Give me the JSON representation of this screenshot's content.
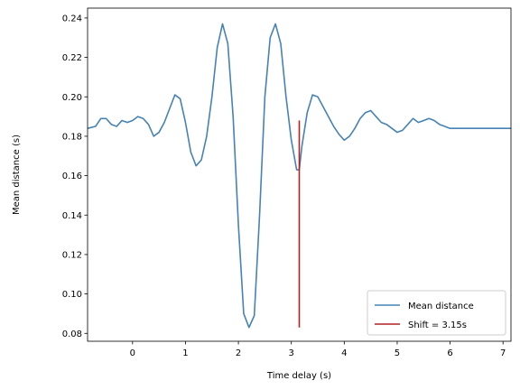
{
  "chart_data": {
    "type": "line",
    "title": "",
    "xlabel": "Time delay (s)",
    "ylabel": "Mean distance (s)",
    "xlim": [
      -0.85,
      7.15
    ],
    "ylim": [
      0.076,
      0.245
    ],
    "xticks": [
      0,
      1,
      2,
      3,
      4,
      5,
      6,
      7
    ],
    "xtick_labels": [
      "0",
      "1",
      "2",
      "3",
      "4",
      "5",
      "6",
      "7"
    ],
    "yticks": [
      0.08,
      0.1,
      0.12,
      0.14,
      0.16,
      0.18,
      0.2,
      0.22,
      0.24
    ],
    "ytick_labels": [
      "0.08",
      "0.10",
      "0.12",
      "0.14",
      "0.16",
      "0.18",
      "0.20",
      "0.22",
      "0.24"
    ],
    "grid": false,
    "legend_position": "lower-right",
    "series": [
      {
        "name": "Mean distance",
        "color": "#4682b4",
        "x": [
          -0.85,
          -0.7,
          -0.6,
          -0.5,
          -0.4,
          -0.3,
          -0.2,
          -0.1,
          0.0,
          0.1,
          0.2,
          0.3,
          0.4,
          0.5,
          0.6,
          0.7,
          0.8,
          0.9,
          1.0,
          1.1,
          1.2,
          1.3,
          1.4,
          1.5,
          1.6,
          1.7,
          1.8,
          1.9,
          2.0,
          2.1,
          2.2,
          2.3,
          2.4,
          2.5,
          2.6,
          2.7,
          2.8,
          2.9,
          3.0,
          3.1,
          3.15,
          3.2,
          3.3,
          3.4,
          3.5,
          3.6,
          3.7,
          3.8,
          3.9,
          4.0,
          4.1,
          4.2,
          4.3,
          4.4,
          4.5,
          4.6,
          4.7,
          4.8,
          4.9,
          5.0,
          5.1,
          5.2,
          5.3,
          5.4,
          5.5,
          5.6,
          5.7,
          5.8,
          5.9,
          6.0,
          6.1,
          6.2,
          6.3,
          6.4,
          6.5,
          6.6,
          6.7,
          6.8,
          6.9,
          7.0,
          7.15
        ],
        "y": [
          0.184,
          0.185,
          0.189,
          0.189,
          0.186,
          0.185,
          0.188,
          0.187,
          0.188,
          0.19,
          0.189,
          0.186,
          0.18,
          0.182,
          0.187,
          0.194,
          0.201,
          0.199,
          0.187,
          0.172,
          0.165,
          0.168,
          0.18,
          0.2,
          0.225,
          0.237,
          0.227,
          0.19,
          0.135,
          0.09,
          0.083,
          0.089,
          0.14,
          0.2,
          0.23,
          0.237,
          0.227,
          0.2,
          0.178,
          0.163,
          0.163,
          0.175,
          0.192,
          0.201,
          0.2,
          0.195,
          0.19,
          0.185,
          0.181,
          0.178,
          0.18,
          0.184,
          0.189,
          0.192,
          0.193,
          0.19,
          0.187,
          0.186,
          0.184,
          0.182,
          0.183,
          0.186,
          0.189,
          0.187,
          0.188,
          0.189,
          0.188,
          0.186,
          0.185,
          0.184,
          0.184,
          0.184,
          0.184,
          0.184,
          0.184,
          0.184,
          0.184,
          0.184,
          0.184,
          0.184,
          0.184
        ]
      }
    ],
    "marker": {
      "name": "Shift = 3.15s",
      "color": "#b22222",
      "x": 3.15,
      "y_from": 0.083,
      "y_to": 0.188
    }
  }
}
